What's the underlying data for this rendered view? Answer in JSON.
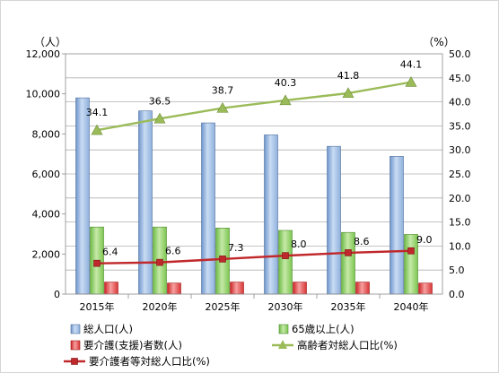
{
  "chart_data": {
    "type": "bar",
    "categories": [
      "2015年",
      "2020年",
      "2025年",
      "2030年",
      "2035年",
      "2040年"
    ],
    "y_left": {
      "unit_label": "（人）",
      "ylim": [
        0,
        12000
      ],
      "ticks": [
        "0",
        "2,000",
        "4,000",
        "6,000",
        "8,000",
        "10,000",
        "12,000"
      ]
    },
    "y_right": {
      "unit_label": "（%）",
      "ylim": [
        0,
        50
      ],
      "ticks": [
        "0.0",
        "5.0",
        "10.0",
        "15.0",
        "20.0",
        "25.0",
        "30.0",
        "35.0",
        "40.0",
        "45.0",
        "50.0"
      ]
    },
    "series": [
      {
        "name": "総人口(人)",
        "type": "bar",
        "axis": "left",
        "color": "#9dbde6",
        "values": [
          9800,
          9150,
          8550,
          7950,
          7380,
          6880
        ]
      },
      {
        "name": "65歳以上(人)",
        "type": "bar",
        "axis": "left",
        "color": "#8fd06b",
        "values": [
          3350,
          3350,
          3300,
          3180,
          3080,
          2980
        ]
      },
      {
        "name": "要介護(支援)者数(人)",
        "type": "bar",
        "axis": "left",
        "color": "#e84a4a",
        "values": [
          600,
          550,
          600,
          600,
          600,
          550
        ]
      },
      {
        "name": "高齢者対総人口比(%)",
        "type": "line",
        "axis": "right",
        "color": "#9bbb59",
        "marker": "triangle",
        "values": [
          34.1,
          36.5,
          38.7,
          40.3,
          41.8,
          44.1
        ],
        "labels": [
          "34.1",
          "36.5",
          "38.7",
          "40.3",
          "41.8",
          "44.1"
        ]
      },
      {
        "name": "要介護者等対総人口比(%)",
        "type": "line",
        "axis": "right",
        "color": "#c0282b",
        "marker": "square",
        "values": [
          6.4,
          6.6,
          7.3,
          8.0,
          8.6,
          9.0
        ],
        "labels": [
          "6.4",
          "6.6",
          "7.3",
          "8.0",
          "8.6",
          "9.0"
        ]
      }
    ],
    "grid": true,
    "legend_position": "bottom"
  }
}
